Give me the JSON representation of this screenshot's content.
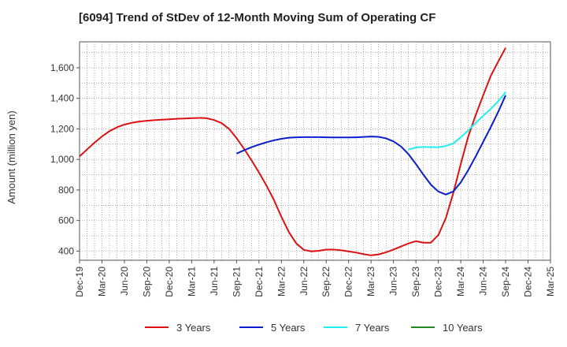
{
  "chart_data": {
    "type": "line",
    "title": "[6094]  Trend of StDev of 12-Month Moving Sum of Operating CF",
    "xlabel": "",
    "ylabel": "Amount (million yen)",
    "x_tick_labels": [
      "Dec-19",
      "Mar-20",
      "Jun-20",
      "Sep-20",
      "Dec-20",
      "Mar-21",
      "Jun-21",
      "Sep-21",
      "Dec-21",
      "Mar-22",
      "Jun-22",
      "Sep-22",
      "Dec-22",
      "Mar-23",
      "Jun-23",
      "Sep-23",
      "Dec-23",
      "Mar-24",
      "Jun-24",
      "Sep-24",
      "Dec-24",
      "Mar-25"
    ],
    "y_ticks": [
      400,
      600,
      800,
      1000,
      1200,
      1400,
      1600
    ],
    "y_tick_labels": [
      "400",
      "600",
      "800",
      "1,000",
      "1,200",
      "1,400",
      "1,600"
    ],
    "ylim": [
      340,
      1770
    ],
    "grid": true,
    "legend_position": "bottom",
    "series": [
      {
        "name": "3 Years",
        "color": "#dd1111",
        "points": [
          [
            "Dec-19",
            1020
          ],
          [
            "Jan-20",
            1065
          ],
          [
            "Feb-20",
            1110
          ],
          [
            "Mar-20",
            1150
          ],
          [
            "Apr-20",
            1185
          ],
          [
            "May-20",
            1210
          ],
          [
            "Jun-20",
            1228
          ],
          [
            "Jul-20",
            1240
          ],
          [
            "Aug-20",
            1248
          ],
          [
            "Sep-20",
            1253
          ],
          [
            "Oct-20",
            1257
          ],
          [
            "Nov-20",
            1260
          ],
          [
            "Dec-20",
            1263
          ],
          [
            "Jan-21",
            1266
          ],
          [
            "Feb-21",
            1268
          ],
          [
            "Mar-21",
            1270
          ],
          [
            "Apr-21",
            1272
          ],
          [
            "May-21",
            1270
          ],
          [
            "Jun-21",
            1258
          ],
          [
            "Jul-21",
            1238
          ],
          [
            "Aug-21",
            1200
          ],
          [
            "Sep-21",
            1140
          ],
          [
            "Oct-21",
            1070
          ],
          [
            "Nov-21",
            995
          ],
          [
            "Dec-21",
            915
          ],
          [
            "Jan-22",
            830
          ],
          [
            "Feb-22",
            735
          ],
          [
            "Mar-22",
            625
          ],
          [
            "Apr-22",
            525
          ],
          [
            "May-22",
            450
          ],
          [
            "Jun-22",
            408
          ],
          [
            "Jul-22",
            398
          ],
          [
            "Aug-22",
            402
          ],
          [
            "Sep-22",
            410
          ],
          [
            "Oct-22",
            410
          ],
          [
            "Nov-22",
            405
          ],
          [
            "Dec-22",
            398
          ],
          [
            "Jan-23",
            390
          ],
          [
            "Feb-23",
            380
          ],
          [
            "Mar-23",
            372
          ],
          [
            "Apr-23",
            378
          ],
          [
            "May-23",
            392
          ],
          [
            "Jun-23",
            410
          ],
          [
            "Jul-23",
            430
          ],
          [
            "Aug-23",
            450
          ],
          [
            "Sep-23",
            465
          ],
          [
            "Oct-23",
            455
          ],
          [
            "Nov-23",
            455
          ],
          [
            "Dec-23",
            505
          ],
          [
            "Jan-24",
            615
          ],
          [
            "Feb-24",
            780
          ],
          [
            "Mar-24",
            970
          ],
          [
            "Apr-24",
            1150
          ],
          [
            "May-24",
            1290
          ],
          [
            "Jun-24",
            1420
          ],
          [
            "Jul-24",
            1545
          ],
          [
            "Aug-24",
            1640
          ],
          [
            "Sep-24",
            1730
          ]
        ]
      },
      {
        "name": "5 Years",
        "color": "#0a1fcc",
        "points": [
          [
            "Sep-21",
            1038
          ],
          [
            "Oct-21",
            1060
          ],
          [
            "Nov-21",
            1080
          ],
          [
            "Dec-21",
            1097
          ],
          [
            "Jan-22",
            1112
          ],
          [
            "Feb-22",
            1125
          ],
          [
            "Mar-22",
            1135
          ],
          [
            "Apr-22",
            1142
          ],
          [
            "May-22",
            1145
          ],
          [
            "Jun-22",
            1146
          ],
          [
            "Jul-22",
            1146
          ],
          [
            "Aug-22",
            1146
          ],
          [
            "Sep-22",
            1145
          ],
          [
            "Oct-22",
            1144
          ],
          [
            "Nov-22",
            1144
          ],
          [
            "Dec-22",
            1144
          ],
          [
            "Jan-23",
            1145
          ],
          [
            "Feb-23",
            1147
          ],
          [
            "Mar-23",
            1150
          ],
          [
            "Apr-23",
            1148
          ],
          [
            "May-23",
            1138
          ],
          [
            "Jun-23",
            1118
          ],
          [
            "Jul-23",
            1085
          ],
          [
            "Aug-23",
            1035
          ],
          [
            "Sep-23",
            970
          ],
          [
            "Oct-23",
            900
          ],
          [
            "Nov-23",
            835
          ],
          [
            "Dec-23",
            790
          ],
          [
            "Jan-24",
            770
          ],
          [
            "Feb-24",
            790
          ],
          [
            "Mar-24",
            850
          ],
          [
            "Apr-24",
            930
          ],
          [
            "May-24",
            1020
          ],
          [
            "Jun-24",
            1115
          ],
          [
            "Jul-24",
            1210
          ],
          [
            "Aug-24",
            1310
          ],
          [
            "Sep-24",
            1420
          ]
        ]
      },
      {
        "name": "7 Years",
        "color": "#22eeee",
        "points": [
          [
            "Aug-23",
            1065
          ],
          [
            "Sep-23",
            1078
          ],
          [
            "Oct-23",
            1082
          ],
          [
            "Nov-23",
            1080
          ],
          [
            "Dec-23",
            1080
          ],
          [
            "Jan-24",
            1088
          ],
          [
            "Feb-24",
            1105
          ],
          [
            "Mar-24",
            1145
          ],
          [
            "Apr-24",
            1190
          ],
          [
            "May-24",
            1240
          ],
          [
            "Jun-24",
            1285
          ],
          [
            "Jul-24",
            1330
          ],
          [
            "Aug-24",
            1380
          ],
          [
            "Sep-24",
            1440
          ]
        ]
      },
      {
        "name": "10 Years",
        "color": "#228822",
        "points": []
      }
    ]
  }
}
